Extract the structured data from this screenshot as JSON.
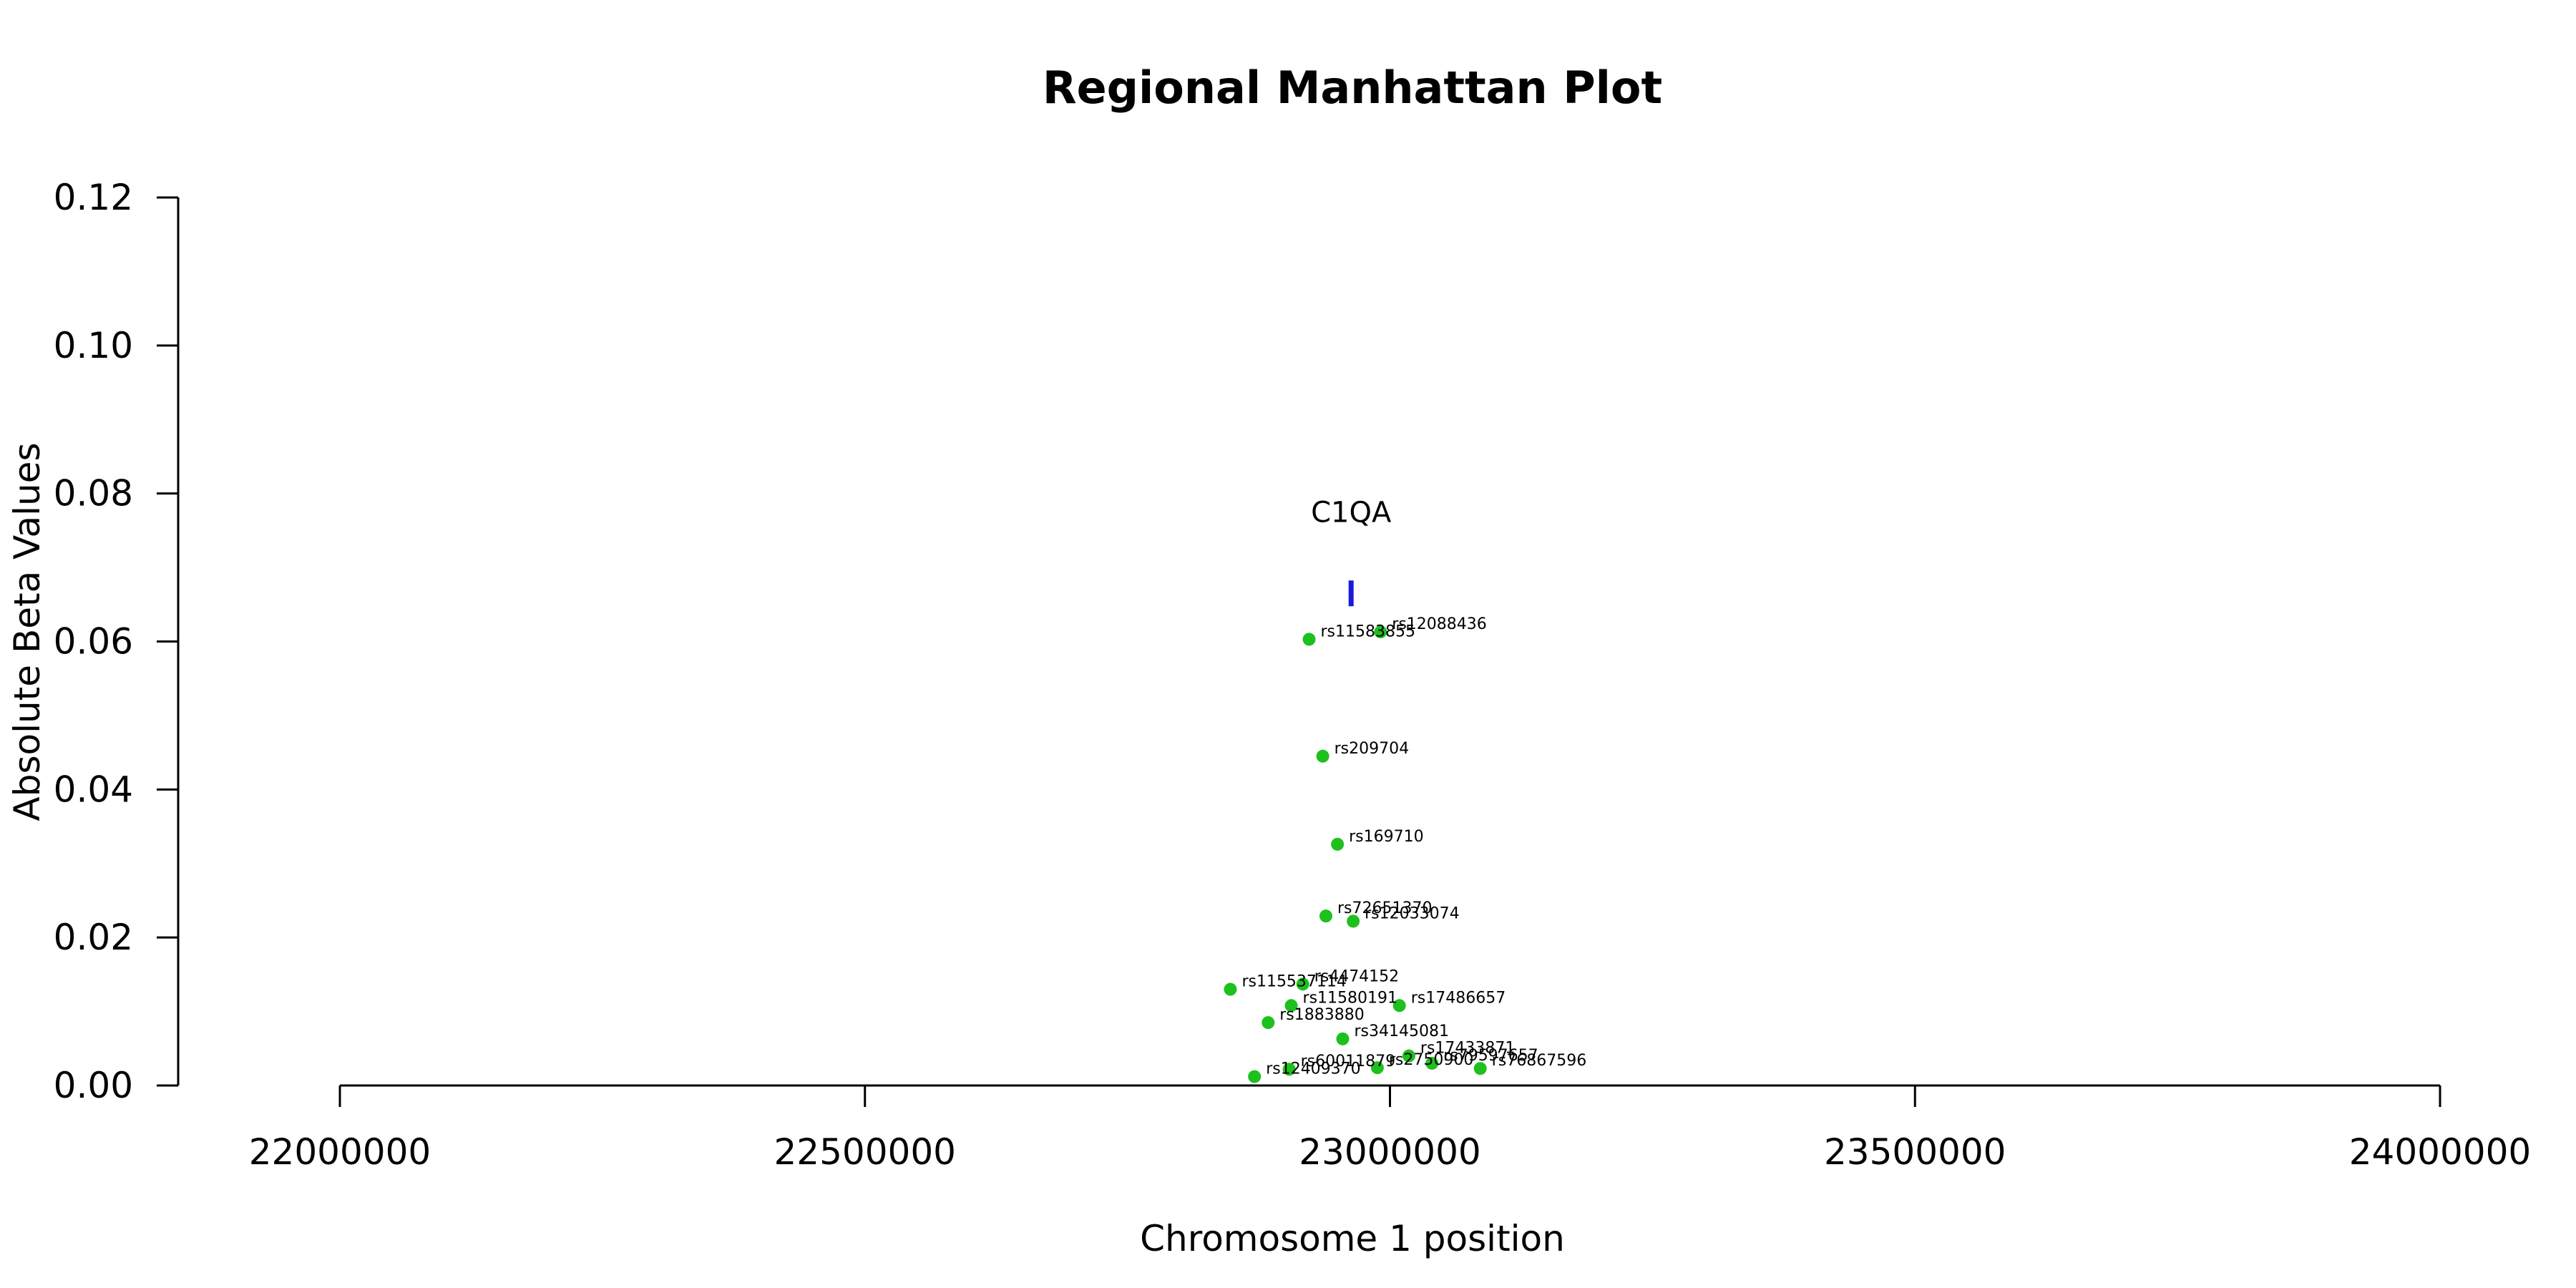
{
  "chart_data": {
    "type": "scatter",
    "title": "Regional Manhattan Plot",
    "xlabel": "Chromosome 1 position",
    "ylabel": "Absolute Beta Values",
    "xlim": [
      22000000,
      24000000
    ],
    "ylim": [
      0,
      0.12
    ],
    "x_ticks": [
      22000000,
      22500000,
      23000000,
      23500000,
      24000000
    ],
    "x_tick_labels": [
      "22000000",
      "22500000",
      "23000000",
      "23500000",
      "24000000"
    ],
    "y_ticks": [
      0,
      0.02,
      0.04,
      0.06,
      0.08,
      0.1,
      0.12
    ],
    "y_tick_labels": [
      "0.00",
      "0.02",
      "0.04",
      "0.06",
      "0.08",
      "0.10",
      "0.12"
    ],
    "point_color": "#1ec01e",
    "gene_color": "#1a1adc",
    "genes": [
      {
        "name": "C1QA",
        "position": 22963000,
        "y": 0.0665
      }
    ],
    "points": [
      {
        "label": "rs11583855",
        "x": 22923000,
        "y": 0.0603
      },
      {
        "label": "rs12088436",
        "x": 22991000,
        "y": 0.0613
      },
      {
        "label": "rs209704",
        "x": 22936000,
        "y": 0.0445
      },
      {
        "label": "rs169710",
        "x": 22950000,
        "y": 0.0326
      },
      {
        "label": "rs72651370",
        "x": 22939000,
        "y": 0.0229
      },
      {
        "label": "rs12033074",
        "x": 22965000,
        "y": 0.0222
      },
      {
        "label": "rs115537114",
        "x": 22848000,
        "y": 0.013
      },
      {
        "label": "rs4474152",
        "x": 22917000,
        "y": 0.0137
      },
      {
        "label": "rs11580191",
        "x": 22906000,
        "y": 0.0108
      },
      {
        "label": "rs17486657",
        "x": 23009000,
        "y": 0.0108
      },
      {
        "label": "rs1883880",
        "x": 22884000,
        "y": 0.0085
      },
      {
        "label": "rs34145081",
        "x": 22955000,
        "y": 0.0063
      },
      {
        "label": "rs17433871",
        "x": 23018000,
        "y": 0.004
      },
      {
        "label": "rs79597657",
        "x": 23040000,
        "y": 0.003
      },
      {
        "label": "rs60011879",
        "x": 22904000,
        "y": 0.0022
      },
      {
        "label": "rs2750900",
        "x": 22988000,
        "y": 0.0024
      },
      {
        "label": "rs76867596",
        "x": 23086000,
        "y": 0.0023
      },
      {
        "label": "rs12409370",
        "x": 22871000,
        "y": 0.0012
      }
    ]
  }
}
